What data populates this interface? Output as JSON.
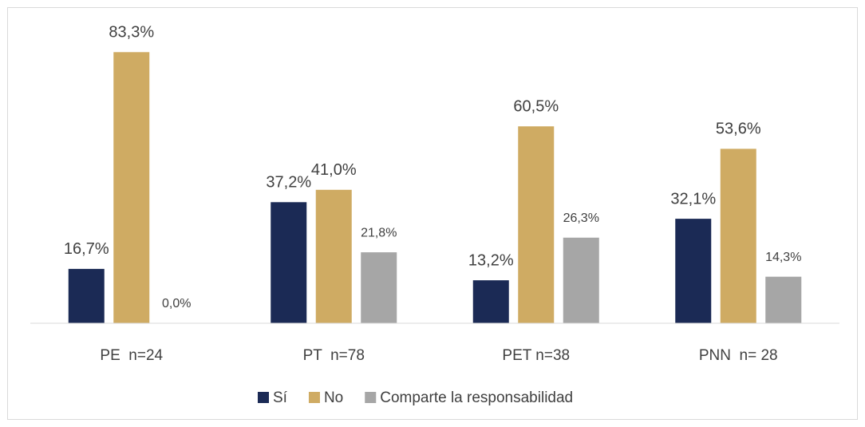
{
  "chart_data": {
    "type": "bar",
    "categories": [
      "PE  n=24",
      "PT  n=78",
      "PET n=38",
      "PNN  n= 28"
    ],
    "series": [
      {
        "name": "Sí",
        "color": "#1b2a55",
        "values": [
          16.7,
          37.2,
          13.2,
          32.1
        ],
        "value_labels": [
          "16,7%",
          "37,2%",
          "13,2%",
          "32,1%"
        ]
      },
      {
        "name": "No",
        "color": "#cfab63",
        "values": [
          83.3,
          41.0,
          60.5,
          53.6
        ],
        "value_labels": [
          "83,3%",
          "41,0%",
          "60,5%",
          "53,6%"
        ]
      },
      {
        "name": "Comparte la responsabilidad",
        "color": "#a6a6a6",
        "values": [
          0.0,
          21.8,
          26.3,
          14.3
        ],
        "value_labels": [
          "0,0%",
          "21,8%",
          "26,3%",
          "14,3%"
        ]
      }
    ],
    "ylim": [
      0,
      90
    ],
    "legend": "bottom"
  }
}
